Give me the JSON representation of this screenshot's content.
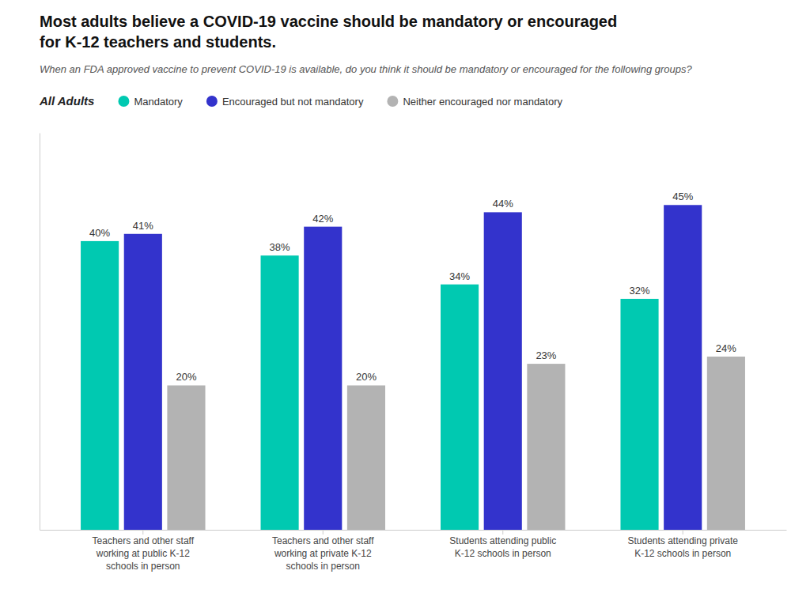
{
  "chart_data": {
    "type": "bar",
    "title": "Most adults believe a COVID-19 vaccine should be mandatory or encouraged\nfor K-12 teachers and students.",
    "subtitle": "When an FDA approved vaccine to prevent COVID-19 is available, do you think it should be mandatory or encouraged for the following groups?",
    "annotations": [
      "All Adults"
    ],
    "categories": [
      "Teachers and other staff\nworking at public K-12\nschools in person",
      "Teachers and other staff\nworking at private K-12\nschools in person",
      "Students attending public\nK-12 schools in person",
      "Students attending private\nK-12 schools in person"
    ],
    "series": [
      {
        "name": "Mandatory",
        "color": "#00C9B1",
        "values": [
          40,
          38,
          34,
          32
        ],
        "value_labels": [
          "40%",
          "38%",
          "34%",
          "32%"
        ]
      },
      {
        "name": "Encouraged but not mandatory",
        "color": "#3333CC",
        "values": [
          41,
          42,
          44,
          45
        ],
        "value_labels": [
          "41%",
          "42%",
          "44%",
          "45%"
        ]
      },
      {
        "name": "Neither encouraged nor mandatory",
        "color": "#B3B3B3",
        "values": [
          20,
          20,
          23,
          24
        ],
        "value_labels": [
          "20%",
          "20%",
          "23%",
          "24%"
        ]
      }
    ],
    "ylim": [
      0,
      55
    ],
    "grid": false,
    "legend": "top",
    "data_labels": true,
    "tick_labels": "x"
  }
}
